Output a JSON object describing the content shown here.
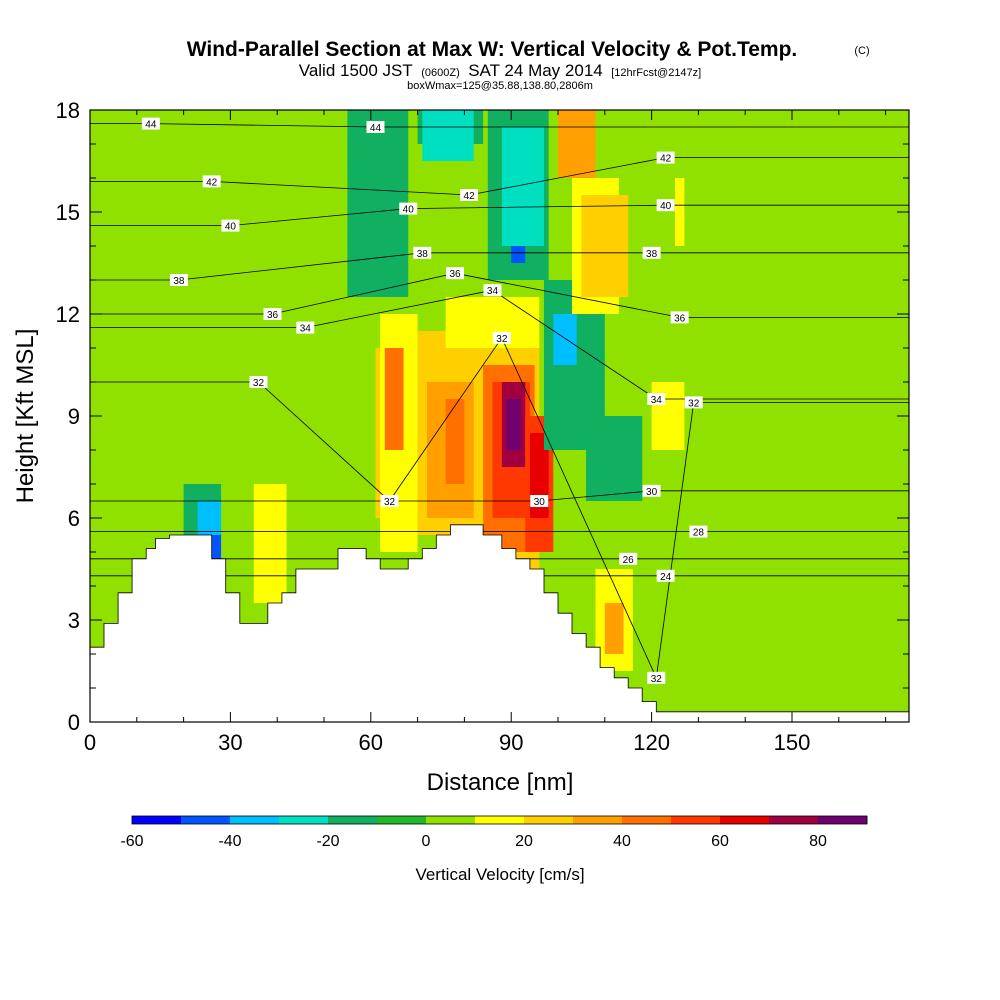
{
  "chart_data": {
    "type": "heatmap",
    "title": "Wind-Parallel Section at Max W: Vertical Velocity & Pot.Temp.",
    "title_mark": "(C)",
    "subtitle": {
      "valid": "Valid 1500 JST",
      "utc": "(0600Z)",
      "date": "SAT 24 May 2014",
      "forecast": "[12hrFcst@2147z]"
    },
    "box_info": "boxWmax=125@35.88,138.80,2806m",
    "xlabel": "Distance [nm]",
    "ylabel": "Height [Kft MSL]",
    "xlim": [
      0,
      175
    ],
    "ylim": [
      0,
      18
    ],
    "x_ticks": [
      0,
      30,
      60,
      90,
      120,
      150
    ],
    "y_ticks": [
      0,
      3,
      6,
      9,
      12,
      15,
      18
    ],
    "colorbar": {
      "title": "Vertical Velocity [cm/s]",
      "levels": [
        -60,
        -50,
        -40,
        -30,
        -20,
        -10,
        0,
        10,
        20,
        30,
        40,
        50,
        60,
        70,
        80,
        90
      ],
      "labels": [
        -60,
        -40,
        -20,
        0,
        20,
        40,
        60,
        80
      ],
      "colors": [
        "#0000ff",
        "#0055ff",
        "#00bfff",
        "#00e0c0",
        "#10b060",
        "#20b828",
        "#90e000",
        "#ffff00",
        "#ffd000",
        "#ffa000",
        "#ff7000",
        "#ff3800",
        "#e80000",
        "#a00040",
        "#700070"
      ]
    },
    "terrain_profile": [
      [
        0,
        2.2
      ],
      [
        3,
        2.2
      ],
      [
        3,
        2.9
      ],
      [
        6,
        2.9
      ],
      [
        6,
        3.8
      ],
      [
        9,
        3.8
      ],
      [
        9,
        4.8
      ],
      [
        12,
        4.8
      ],
      [
        12,
        5.1
      ],
      [
        14,
        5.1
      ],
      [
        14,
        5.4
      ],
      [
        17,
        5.4
      ],
      [
        17,
        5.5
      ],
      [
        26,
        5.5
      ],
      [
        26,
        4.8
      ],
      [
        29,
        4.8
      ],
      [
        29,
        3.8
      ],
      [
        32,
        3.8
      ],
      [
        32,
        2.9
      ],
      [
        38,
        2.9
      ],
      [
        38,
        3.5
      ],
      [
        41,
        3.5
      ],
      [
        41,
        3.8
      ],
      [
        44,
        3.8
      ],
      [
        44,
        4.5
      ],
      [
        53,
        4.5
      ],
      [
        53,
        5.1
      ],
      [
        59,
        5.1
      ],
      [
        59,
        4.8
      ],
      [
        62,
        4.8
      ],
      [
        62,
        4.5
      ],
      [
        68,
        4.5
      ],
      [
        68,
        4.8
      ],
      [
        71,
        4.8
      ],
      [
        71,
        5.1
      ],
      [
        74,
        5.1
      ],
      [
        74,
        5.5
      ],
      [
        77,
        5.5
      ],
      [
        77,
        5.8
      ],
      [
        84,
        5.8
      ],
      [
        84,
        5.5
      ],
      [
        88,
        5.5
      ],
      [
        88,
        5.1
      ],
      [
        91,
        5.1
      ],
      [
        91,
        4.8
      ],
      [
        94,
        4.8
      ],
      [
        94,
        4.5
      ],
      [
        97,
        4.5
      ],
      [
        97,
        3.8
      ],
      [
        100,
        3.8
      ],
      [
        100,
        3.2
      ],
      [
        103,
        3.2
      ],
      [
        103,
        2.6
      ],
      [
        106,
        2.6
      ],
      [
        106,
        2.2
      ],
      [
        109,
        2.2
      ],
      [
        109,
        1.6
      ],
      [
        112,
        1.6
      ],
      [
        112,
        1.3
      ],
      [
        115,
        1.3
      ],
      [
        115,
        1.0
      ],
      [
        118,
        1.0
      ],
      [
        118,
        0.6
      ],
      [
        121,
        0.6
      ],
      [
        121,
        0.3
      ],
      [
        175,
        0.3
      ]
    ],
    "vv_cells": [
      {
        "x": [
          0,
          175
        ],
        "y": [
          0,
          18
        ],
        "value": 0
      },
      {
        "x": [
          0,
          14
        ],
        "y": [
          11,
          18
        ],
        "value": 5
      },
      {
        "x": [
          9,
          20
        ],
        "y": [
          12,
          18
        ],
        "value": 8
      },
      {
        "x": [
          17,
          26
        ],
        "y": [
          15,
          18
        ],
        "value": 5
      },
      {
        "x": [
          15,
          24
        ],
        "y": [
          5,
          10
        ],
        "value": 5
      },
      {
        "x": [
          20,
          28
        ],
        "y": [
          4,
          7
        ],
        "value": -20
      },
      {
        "x": [
          23,
          28
        ],
        "y": [
          4,
          6.5
        ],
        "value": -40
      },
      {
        "x": [
          25,
          28
        ],
        "y": [
          4,
          5.5
        ],
        "value": -50
      },
      {
        "x": [
          35,
          42
        ],
        "y": [
          3.5,
          8
        ],
        "value": 15
      },
      {
        "x": [
          34,
          50
        ],
        "y": [
          7,
          12
        ],
        "value": 5
      },
      {
        "x": [
          36,
          41
        ],
        "y": [
          13,
          18
        ],
        "value": 5
      },
      {
        "x": [
          55,
          68
        ],
        "y": [
          12.5,
          18
        ],
        "value": -15
      },
      {
        "x": [
          61,
          66
        ],
        "y": [
          6,
          11
        ],
        "value": 25
      },
      {
        "x": [
          62,
          70
        ],
        "y": [
          5,
          12
        ],
        "value": 15
      },
      {
        "x": [
          63,
          67
        ],
        "y": [
          8,
          11
        ],
        "value": 40
      },
      {
        "x": [
          70,
          83
        ],
        "y": [
          5.5,
          11.5
        ],
        "value": 20
      },
      {
        "x": [
          72,
          82
        ],
        "y": [
          6,
          10
        ],
        "value": 30
      },
      {
        "x": [
          76,
          80
        ],
        "y": [
          7,
          9.5
        ],
        "value": 45
      },
      {
        "x": [
          83,
          96
        ],
        "y": [
          4,
          11.5
        ],
        "value": 25
      },
      {
        "x": [
          84,
          95
        ],
        "y": [
          5,
          10.5
        ],
        "value": 40
      },
      {
        "x": [
          86,
          94
        ],
        "y": [
          6,
          10
        ],
        "value": 55
      },
      {
        "x": [
          88,
          93
        ],
        "y": [
          7.5,
          10
        ],
        "value": 70
      },
      {
        "x": [
          89,
          92
        ],
        "y": [
          8,
          9.5
        ],
        "value": 85
      },
      {
        "x": [
          93,
          99
        ],
        "y": [
          5,
          9
        ],
        "value": 50
      },
      {
        "x": [
          94,
          98
        ],
        "y": [
          6,
          8.5
        ],
        "value": 65
      },
      {
        "x": [
          76,
          96
        ],
        "y": [
          11,
          12.5
        ],
        "value": 10
      },
      {
        "x": [
          70,
          84
        ],
        "y": [
          17,
          18
        ],
        "value": -20
      },
      {
        "x": [
          71,
          82
        ],
        "y": [
          16.5,
          18
        ],
        "value": -30
      },
      {
        "x": [
          85,
          98
        ],
        "y": [
          13,
          18
        ],
        "value": -20
      },
      {
        "x": [
          88,
          97
        ],
        "y": [
          14,
          17.5
        ],
        "value": -30
      },
      {
        "x": [
          90,
          93
        ],
        "y": [
          13.5,
          14
        ],
        "value": -50
      },
      {
        "x": [
          97,
          110
        ],
        "y": [
          8,
          13
        ],
        "value": -15
      },
      {
        "x": [
          99,
          104
        ],
        "y": [
          10.5,
          12
        ],
        "value": -40
      },
      {
        "x": [
          106,
          118
        ],
        "y": [
          6.5,
          9
        ],
        "value": -20
      },
      {
        "x": [
          100,
          108
        ],
        "y": [
          16,
          18
        ],
        "value": 30
      },
      {
        "x": [
          103,
          113
        ],
        "y": [
          12,
          16
        ],
        "value": 15
      },
      {
        "x": [
          105,
          115
        ],
        "y": [
          12.5,
          15.5
        ],
        "value": 25
      },
      {
        "x": [
          120,
          127
        ],
        "y": [
          8,
          10
        ],
        "value": 15
      },
      {
        "x": [
          125,
          127
        ],
        "y": [
          14,
          16
        ],
        "value": 15
      },
      {
        "x": [
          108,
          116
        ],
        "y": [
          1.5,
          4.5
        ],
        "value": 15
      },
      {
        "x": [
          110,
          114
        ],
        "y": [
          2,
          3.5
        ],
        "value": 35
      },
      {
        "x": [
          128,
          150
        ],
        "y": [
          0.3,
          3
        ],
        "value": 5
      },
      {
        "x": [
          155,
          175
        ],
        "y": [
          0.3,
          3
        ],
        "value": 5
      },
      {
        "x": [
          155,
          165
        ],
        "y": [
          9,
          18
        ],
        "value": 5
      },
      {
        "x": [
          165,
          175
        ],
        "y": [
          11,
          18
        ],
        "value": 5
      }
    ],
    "contour_labels": [
      {
        "x": 13,
        "y": 17.6,
        "text": "44"
      },
      {
        "x": 61,
        "y": 17.5,
        "text": "44"
      },
      {
        "x": 26,
        "y": 15.9,
        "text": "42"
      },
      {
        "x": 81,
        "y": 15.5,
        "text": "42"
      },
      {
        "x": 123,
        "y": 16.6,
        "text": "42"
      },
      {
        "x": 68,
        "y": 15.1,
        "text": "40"
      },
      {
        "x": 30,
        "y": 14.6,
        "text": "40"
      },
      {
        "x": 123,
        "y": 15.2,
        "text": "40"
      },
      {
        "x": 71,
        "y": 13.8,
        "text": "38"
      },
      {
        "x": 19,
        "y": 13.0,
        "text": "38"
      },
      {
        "x": 120,
        "y": 13.8,
        "text": "38"
      },
      {
        "x": 78,
        "y": 13.2,
        "text": "36"
      },
      {
        "x": 39,
        "y": 12.0,
        "text": "36"
      },
      {
        "x": 126,
        "y": 11.9,
        "text": "36"
      },
      {
        "x": 86,
        "y": 12.7,
        "text": "34"
      },
      {
        "x": 46,
        "y": 11.6,
        "text": "34"
      },
      {
        "x": 121,
        "y": 9.5,
        "text": "34"
      },
      {
        "x": 88,
        "y": 11.3,
        "text": "32"
      },
      {
        "x": 36,
        "y": 10.0,
        "text": "32"
      },
      {
        "x": 129,
        "y": 9.4,
        "text": "32"
      },
      {
        "x": 64,
        "y": 6.5,
        "text": "32"
      },
      {
        "x": 121,
        "y": 1.3,
        "text": "32"
      },
      {
        "x": 96,
        "y": 6.5,
        "text": "30"
      },
      {
        "x": 120,
        "y": 6.8,
        "text": "30"
      },
      {
        "x": 130,
        "y": 5.6,
        "text": "28"
      },
      {
        "x": 115,
        "y": 4.8,
        "text": "26"
      },
      {
        "x": 123,
        "y": 4.3,
        "text": "24"
      }
    ]
  }
}
